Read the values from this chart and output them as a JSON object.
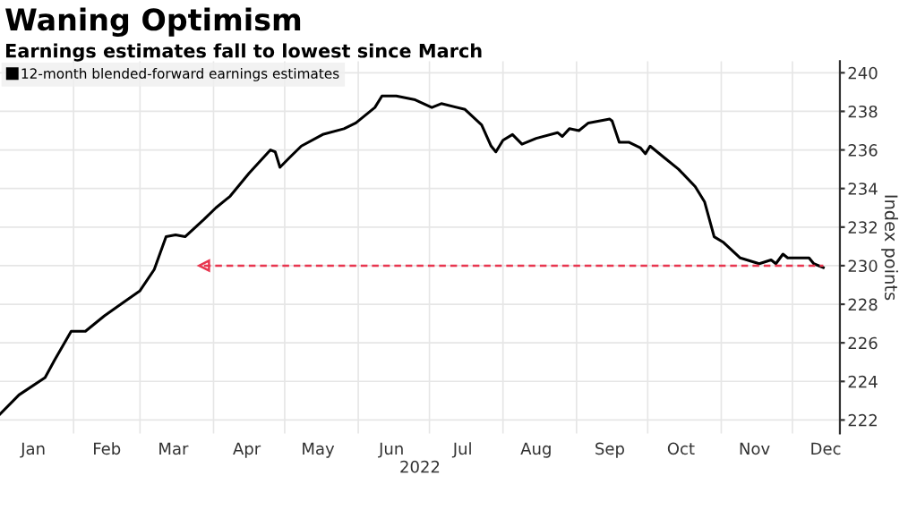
{
  "chart_data": {
    "type": "line",
    "title": "Waning Optimism",
    "subtitle": "Earnings estimates fall to lowest since March",
    "xlabel": "2022",
    "ylabel": "Index points",
    "x": [
      "2022-01-01",
      "2022-01-09",
      "2022-01-20",
      "2022-01-24",
      "2022-01-31",
      "2022-02-06",
      "2022-02-14",
      "2022-02-22",
      "2022-03-01",
      "2022-03-07",
      "2022-03-12",
      "2022-03-16",
      "2022-03-20",
      "2022-03-28",
      "2022-04-02",
      "2022-04-08",
      "2022-04-16",
      "2022-04-25",
      "2022-04-27",
      "2022-04-29",
      "2022-05-03",
      "2022-05-08",
      "2022-05-17",
      "2022-05-26",
      "2022-05-31",
      "2022-06-08",
      "2022-06-11",
      "2022-06-17",
      "2022-06-25",
      "2022-07-02",
      "2022-07-06",
      "2022-07-16",
      "2022-07-23",
      "2022-07-27",
      "2022-07-29",
      "2022-08-01",
      "2022-08-05",
      "2022-08-09",
      "2022-08-15",
      "2022-08-24",
      "2022-08-26",
      "2022-08-29",
      "2022-09-02",
      "2022-09-06",
      "2022-09-15",
      "2022-09-16",
      "2022-09-19",
      "2022-09-23",
      "2022-09-28",
      "2022-09-30",
      "2022-10-02",
      "2022-10-08",
      "2022-10-14",
      "2022-10-21",
      "2022-10-25",
      "2022-10-29",
      "2022-11-02",
      "2022-11-09",
      "2022-11-17",
      "2022-11-22",
      "2022-11-24",
      "2022-11-27",
      "2022-11-29",
      "2022-12-08",
      "2022-12-10",
      "2022-12-14"
    ],
    "series": [
      {
        "name": "12-month blended-forward earnings estimates",
        "color": "#000000",
        "values": [
          222.3,
          223.3,
          224.2,
          225.1,
          226.6,
          226.6,
          227.4,
          228.1,
          228.7,
          229.8,
          231.5,
          231.6,
          231.5,
          232.4,
          233.0,
          233.6,
          234.8,
          236.0,
          235.9,
          235.1,
          235.6,
          236.2,
          236.8,
          237.1,
          237.4,
          238.2,
          238.8,
          238.8,
          238.6,
          238.2,
          238.4,
          238.1,
          237.3,
          236.2,
          235.9,
          236.5,
          236.8,
          236.3,
          236.6,
          236.9,
          236.7,
          237.1,
          237.0,
          237.4,
          237.6,
          237.5,
          236.4,
          236.4,
          236.1,
          235.8,
          236.2,
          235.6,
          235.0,
          234.1,
          233.3,
          231.5,
          231.2,
          230.4,
          230.1,
          230.3,
          230.1,
          230.6,
          230.4,
          230.4,
          230.1,
          229.9
        ]
      },
      {
        "type": "line",
        "color": "#e8364f",
        "line_style": "dashed",
        "marker": "triangle",
        "x": [
          "2022-03-28",
          "2022-12-14"
        ],
        "values": [
          230,
          230
        ]
      }
    ],
    "xlim": [
      "2022-01-01",
      "2022-12-21"
    ],
    "xticks": [
      {
        "value": "2022-01-15",
        "label": "Jan"
      },
      {
        "value": "2022-02-15",
        "label": "Feb"
      },
      {
        "value": "2022-03-15",
        "label": "Mar"
      },
      {
        "value": "2022-04-15",
        "label": "Apr"
      },
      {
        "value": "2022-05-15",
        "label": "May"
      },
      {
        "value": "2022-06-15",
        "label": "Jun"
      },
      {
        "value": "2022-07-15",
        "label": "Jul"
      },
      {
        "value": "2022-08-15",
        "label": "Aug"
      },
      {
        "value": "2022-09-15",
        "label": "Sep"
      },
      {
        "value": "2022-10-15",
        "label": "Oct"
      },
      {
        "value": "2022-11-15",
        "label": "Nov"
      },
      {
        "value": "2022-12-15",
        "label": "Dec"
      }
    ],
    "ylim": [
      221.3,
      240.6
    ],
    "yticks": [
      222,
      224,
      226,
      228,
      230,
      232,
      234,
      236,
      238,
      240
    ],
    "grid": true,
    "legend": "top left"
  }
}
